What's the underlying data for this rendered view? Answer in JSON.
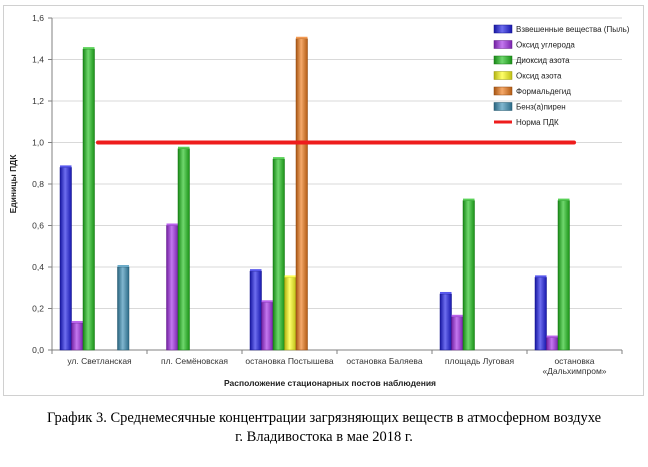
{
  "chart_data": {
    "type": "bar",
    "ylabel": "Единицы ПДК",
    "xlabel": "Расположение стационарных постов наблюдения",
    "ylim": [
      0,
      1.6
    ],
    "yticks": [
      "0,0",
      "0,2",
      "0,4",
      "0,6",
      "0,8",
      "1,0",
      "1,2",
      "1,4",
      "1,6"
    ],
    "grid": true,
    "legend_position": "top-right",
    "categories": [
      [
        "ул. Светланская"
      ],
      [
        "пл. Семёновская"
      ],
      [
        "остановка Постышева"
      ],
      [
        "остановка Баляева"
      ],
      [
        "площадь Луговая"
      ],
      [
        "остановка",
        "«Дальхимпром»"
      ]
    ],
    "series": [
      {
        "name": "Взвешенные вещества (Пыль)",
        "color": "#1f1fe6",
        "values": [
          0.88,
          null,
          0.38,
          null,
          0.27,
          0.35
        ]
      },
      {
        "name": "Оксид углерода",
        "color": "#a32ee6",
        "values": [
          0.13,
          0.6,
          0.23,
          null,
          0.16,
          0.06
        ]
      },
      {
        "name": "Диоксид азота",
        "color": "#22c21f",
        "values": [
          1.45,
          0.97,
          0.92,
          null,
          0.72,
          0.72
        ]
      },
      {
        "name": "Оксид азота",
        "color": "#ffff1a",
        "values": [
          null,
          null,
          0.35,
          null,
          null,
          null
        ]
      },
      {
        "name": "Формальдегид",
        "color": "#ef7a1a",
        "values": [
          null,
          null,
          1.5,
          null,
          null,
          null
        ]
      },
      {
        "name": "Бенз(а)пирен",
        "color": "#3b8fb5",
        "values": [
          0.4,
          null,
          null,
          null,
          null,
          null
        ]
      }
    ],
    "reference_line": {
      "name": "Норма ПДК",
      "value": 1.0,
      "color": "#ee1c1c"
    }
  },
  "caption": {
    "line1": "График 3. Среднемесячные концентрации загрязняющих веществ в атмосферном воздухе",
    "line2": "г. Владивостока в мае 2018 г."
  }
}
